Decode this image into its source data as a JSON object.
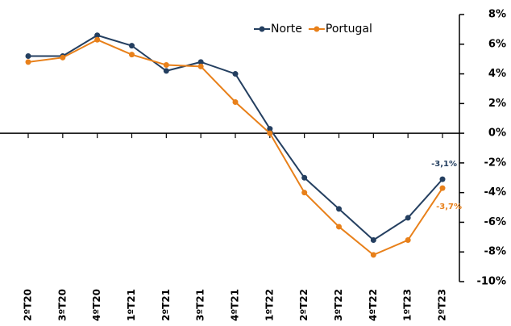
{
  "chart_data": {
    "type": "line",
    "categories": [
      "2ºT20",
      "3ºT20",
      "4ºT20",
      "1ºT21",
      "2ºT21",
      "3ºT21",
      "4ºT21",
      "1ºT22",
      "2ºT22",
      "3ºT22",
      "4ºT22",
      "1ºT23",
      "2ºT23"
    ],
    "series": [
      {
        "name": "Norte",
        "color": "#243f60",
        "values": [
          5.2,
          5.2,
          6.6,
          5.9,
          4.2,
          4.8,
          4.0,
          0.3,
          -3.0,
          -5.1,
          -7.2,
          -5.7,
          -3.1
        ],
        "value_labels": [
          null,
          null,
          null,
          null,
          null,
          null,
          null,
          null,
          null,
          null,
          null,
          null,
          "-3,1%"
        ]
      },
      {
        "name": "Portugal",
        "color": "#e8801a",
        "values": [
          4.8,
          5.1,
          6.3,
          5.3,
          4.6,
          4.5,
          2.1,
          0.0,
          -4.0,
          -6.3,
          -8.2,
          -7.2,
          -3.7
        ],
        "value_labels": [
          null,
          null,
          null,
          null,
          null,
          null,
          null,
          null,
          null,
          null,
          null,
          null,
          "-3,7%"
        ]
      }
    ],
    "ylim": [
      -10,
      8
    ],
    "yticks": [
      {
        "value": -10,
        "label": "-10%"
      },
      {
        "value": -8,
        "label": "-8%"
      },
      {
        "value": -6,
        "label": "-6%"
      },
      {
        "value": -4,
        "label": "-4%"
      },
      {
        "value": -2,
        "label": "-2%"
      },
      {
        "value": 0,
        "label": "0%"
      },
      {
        "value": 2,
        "label": "2%"
      },
      {
        "value": 4,
        "label": "4%"
      },
      {
        "value": 6,
        "label": "6%"
      },
      {
        "value": 8,
        "label": "8%"
      }
    ],
    "legend": "top"
  }
}
